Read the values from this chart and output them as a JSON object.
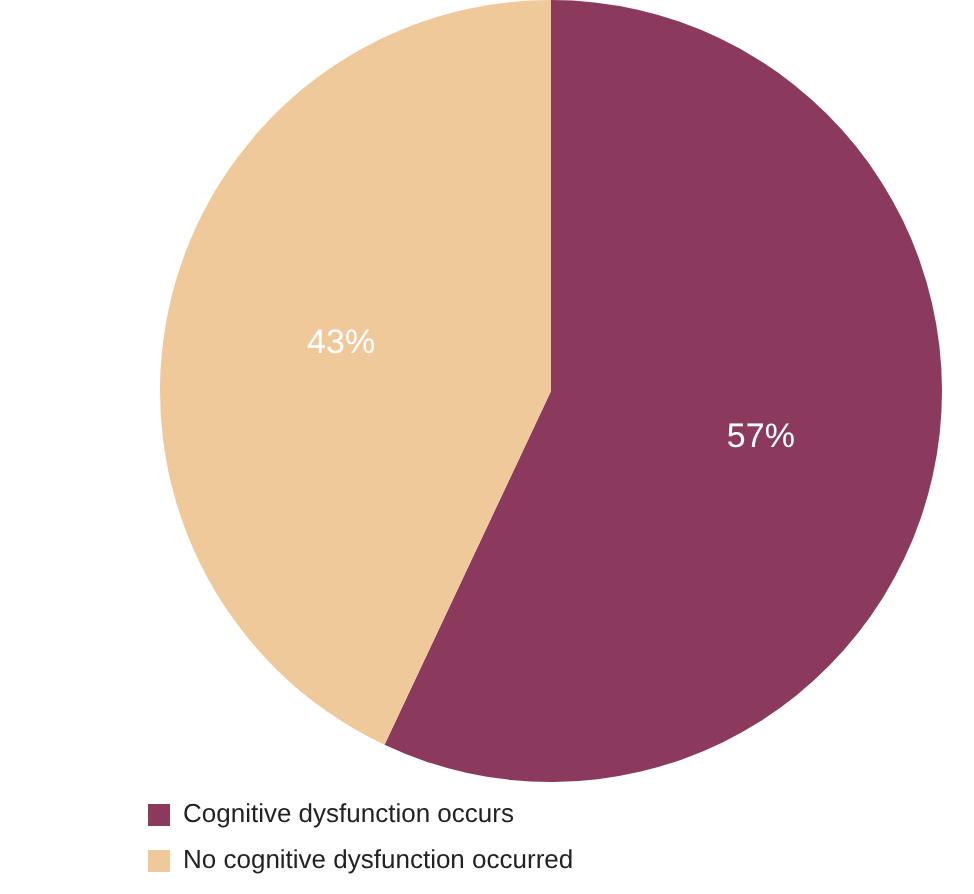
{
  "chart_data": {
    "type": "pie",
    "categories": [
      "Cognitive dysfunction occurs",
      "No cognitive dysfunction occurred"
    ],
    "values": [
      57,
      43
    ],
    "colors": [
      "#8b3a5e",
      "#f0c99b"
    ],
    "value_labels": [
      "57%",
      "43%"
    ],
    "legend": "bottom left"
  }
}
